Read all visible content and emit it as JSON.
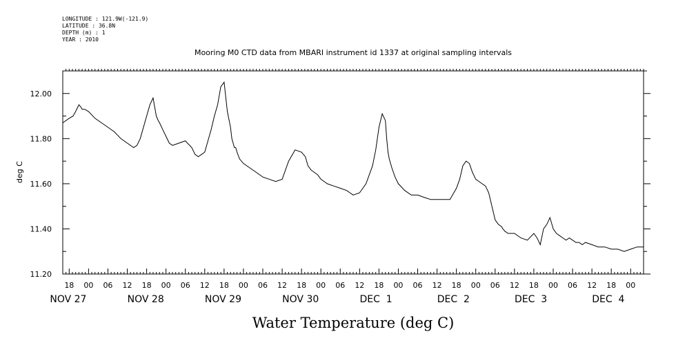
{
  "meta": {
    "longitude": "LONGITUDE : 121.9W(-121.9)",
    "latitude": "LATITUDE : 36.8N",
    "depth": "DEPTH (m) : 1",
    "year": "YEAR : 2010"
  },
  "chart_data": {
    "type": "line",
    "title": "Mooring M0 CTD data from MBARI instrument id 1337 at original sampling intervals",
    "xlabel": "Water Temperature (deg C)",
    "ylabel": "deg C",
    "xlim": [
      -0.333,
      7.167
    ],
    "ylim": [
      11.2,
      12.1
    ],
    "x_units": "days since NOV 27 2010 00:00",
    "yticks": [
      "11.20",
      "11.40",
      "11.60",
      "11.80",
      "12.00"
    ],
    "ytick_values": [
      11.2,
      11.4,
      11.6,
      11.8,
      12.0
    ],
    "hour_ticks": [
      "18",
      "00",
      "06",
      "12",
      "18",
      "00",
      "06",
      "12",
      "18",
      "00",
      "06",
      "12",
      "18",
      "00",
      "06",
      "12",
      "18",
      "00",
      "06",
      "12",
      "18",
      "00",
      "06",
      "12",
      "18",
      "00",
      "06",
      "12",
      "18",
      "00",
      "06",
      "12",
      "18",
      "00",
      "06",
      "12"
    ],
    "day_labels": [
      "NOV 27",
      "NOV 28",
      "NOV 29",
      "NOV 30",
      "DEC  1",
      "DEC  2",
      "DEC  3",
      "DEC  4"
    ],
    "grid": false,
    "series": [
      {
        "name": "",
        "x": [
          -0.333,
          -0.25,
          -0.2,
          -0.167,
          -0.125,
          -0.1,
          -0.083,
          -0.05,
          0.0,
          0.083,
          0.167,
          0.25,
          0.333,
          0.417,
          0.5,
          0.583,
          0.625,
          0.667,
          0.75,
          0.792,
          0.833,
          0.875,
          0.9,
          0.917,
          0.958,
          1.0,
          1.042,
          1.083,
          1.167,
          1.25,
          1.333,
          1.375,
          1.417,
          1.458,
          1.5,
          1.583,
          1.625,
          1.667,
          1.708,
          1.75,
          1.792,
          1.833,
          1.85,
          1.867,
          1.875,
          1.883,
          1.9,
          1.917,
          1.95,
          2.0,
          2.083,
          2.167,
          2.25,
          2.333,
          2.417,
          2.5,
          2.583,
          2.667,
          2.75,
          2.8,
          2.833,
          2.875,
          2.917,
          2.958,
          3.0,
          3.042,
          3.083,
          3.167,
          3.25,
          3.333,
          3.417,
          3.5,
          3.583,
          3.667,
          3.708,
          3.75,
          3.792,
          3.833,
          3.85,
          3.867,
          3.883,
          3.9,
          3.917,
          3.958,
          4.0,
          4.083,
          4.167,
          4.25,
          4.333,
          4.417,
          4.5,
          4.583,
          4.667,
          4.75,
          4.792,
          4.833,
          4.875,
          4.917,
          4.958,
          5.0,
          5.042,
          5.083,
          5.125,
          5.167,
          5.25,
          5.292,
          5.333,
          5.35,
          5.375,
          5.417,
          5.5,
          5.583,
          5.667,
          5.75,
          5.792,
          5.833,
          5.875,
          5.917,
          5.958,
          5.975,
          6.0,
          6.042,
          6.083,
          6.125,
          6.167,
          6.208,
          6.25,
          6.292,
          6.333,
          6.375,
          6.417,
          6.5,
          6.583,
          6.667,
          6.75,
          6.833,
          6.917,
          7.0,
          7.083,
          7.167
        ],
        "y": [
          11.87,
          11.89,
          11.9,
          11.92,
          11.95,
          11.94,
          11.93,
          11.93,
          11.92,
          11.89,
          11.87,
          11.85,
          11.83,
          11.8,
          11.78,
          11.76,
          11.77,
          11.8,
          11.9,
          11.95,
          11.98,
          11.9,
          11.88,
          11.87,
          11.84,
          11.81,
          11.78,
          11.77,
          11.78,
          11.79,
          11.76,
          11.73,
          11.72,
          11.73,
          11.74,
          11.84,
          11.9,
          11.95,
          12.03,
          12.05,
          11.92,
          11.85,
          11.8,
          11.78,
          11.77,
          11.76,
          11.76,
          11.74,
          11.71,
          11.69,
          11.67,
          11.65,
          11.63,
          11.62,
          11.61,
          11.62,
          11.7,
          11.75,
          11.74,
          11.72,
          11.68,
          11.66,
          11.65,
          11.64,
          11.62,
          11.61,
          11.6,
          11.59,
          11.58,
          11.57,
          11.55,
          11.56,
          11.6,
          11.68,
          11.75,
          11.85,
          11.91,
          11.88,
          11.8,
          11.74,
          11.71,
          11.69,
          11.67,
          11.63,
          11.6,
          11.57,
          11.55,
          11.55,
          11.54,
          11.53,
          11.53,
          11.53,
          11.53,
          11.58,
          11.62,
          11.68,
          11.7,
          11.69,
          11.65,
          11.62,
          11.61,
          11.6,
          11.59,
          11.56,
          11.44,
          11.42,
          11.41,
          11.4,
          11.39,
          11.38,
          11.38,
          11.36,
          11.35,
          11.38,
          11.36,
          11.33,
          11.4,
          11.42,
          11.45,
          11.43,
          11.4,
          11.38,
          11.37,
          11.36,
          11.35,
          11.36,
          11.35,
          11.34,
          11.34,
          11.33,
          11.34,
          11.33,
          11.32,
          11.32,
          11.31,
          11.31,
          11.3,
          11.31,
          11.32,
          11.32
        ]
      }
    ]
  }
}
